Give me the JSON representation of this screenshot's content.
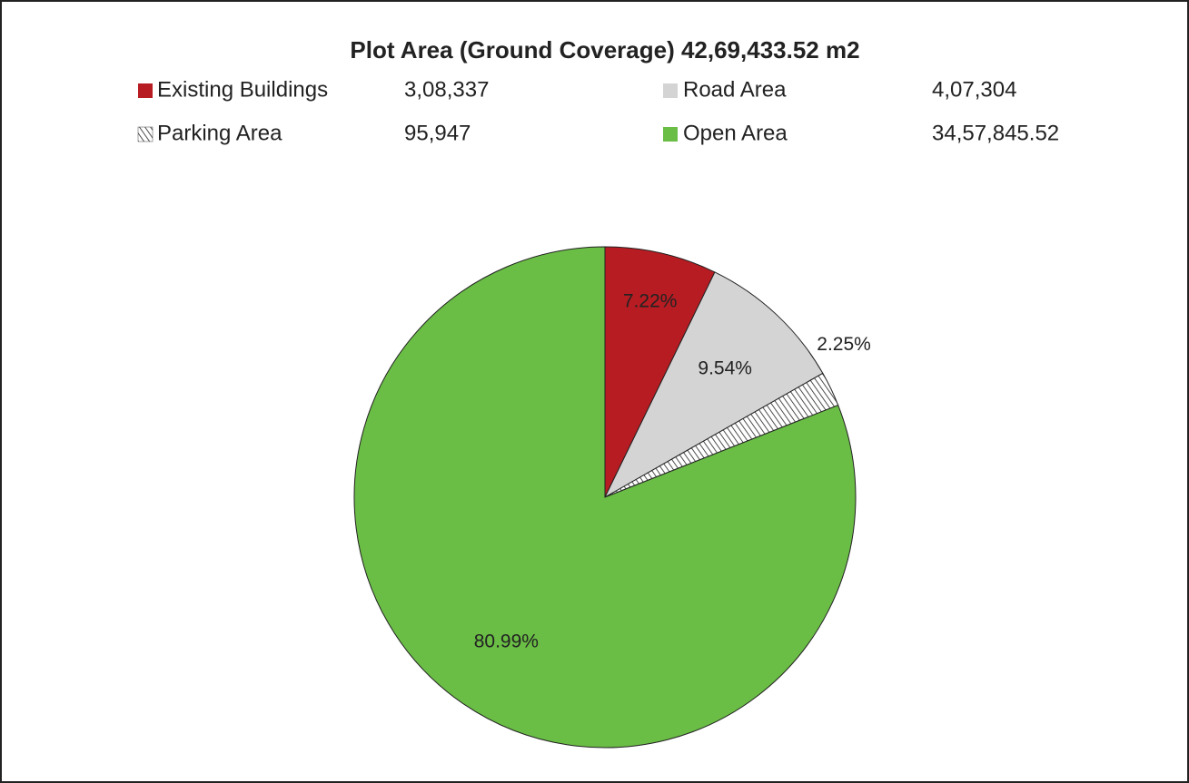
{
  "chart_data": {
    "type": "pie",
    "title": "Plot Area (Ground Coverage) 42,69,433.52 m2",
    "categories": [
      "Existing Buildings",
      "Road Area",
      "Parking Area",
      "Open Area"
    ],
    "values": [
      7.22,
      9.54,
      2.25,
      80.99
    ],
    "value_labels": [
      "7.22%",
      "9.54%",
      "2.25%",
      "80.99%"
    ],
    "areas": [
      308337,
      407304,
      95947,
      3457845.52
    ],
    "area_labels": [
      "3,08,337",
      "4,07,304",
      "95,947",
      "34,57,845.52"
    ],
    "colors": [
      "#b71c22",
      "#d4d4d4",
      "#ffffff",
      "#6abd45"
    ],
    "hatched": [
      false,
      false,
      true,
      false
    ]
  }
}
